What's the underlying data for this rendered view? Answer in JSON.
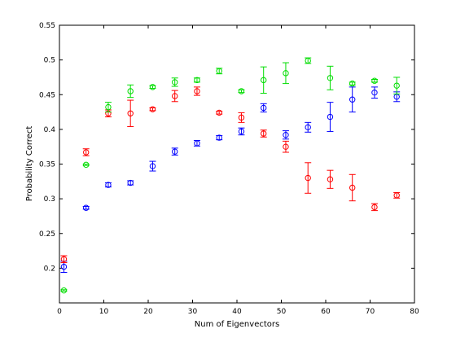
{
  "chart_data": {
    "type": "scatter",
    "xlabel": "Num of Eigenvectors",
    "ylabel": "Probability Correct",
    "xlim": [
      0,
      80
    ],
    "ylim": [
      0.15,
      0.55
    ],
    "xticks": [
      "0",
      "10",
      "20",
      "30",
      "40",
      "50",
      "60",
      "70",
      "80"
    ],
    "yticks": [
      "0.2",
      "0.25",
      "0.3",
      "0.35",
      "0.4",
      "0.45",
      "0.5",
      "0.55"
    ],
    "grid": false,
    "legend": "none",
    "series": [
      {
        "color": "#0000ff",
        "x": [
          1,
          6,
          11,
          16,
          21,
          26,
          31,
          36,
          41,
          46,
          51,
          56,
          61,
          66,
          71,
          76
        ],
        "y": [
          0.202,
          0.287,
          0.32,
          0.323,
          0.347,
          0.368,
          0.38,
          0.388,
          0.397,
          0.431,
          0.392,
          0.403,
          0.418,
          0.443,
          0.453,
          0.447
        ],
        "err": [
          0.008,
          0.002,
          0.003,
          0.003,
          0.007,
          0.005,
          0.004,
          0.003,
          0.005,
          0.006,
          0.006,
          0.007,
          0.021,
          0.018,
          0.008,
          0.007
        ]
      },
      {
        "color": "#ff0000",
        "x": [
          1,
          6,
          11,
          16,
          21,
          26,
          31,
          36,
          41,
          46,
          51,
          56,
          61,
          66,
          71,
          76
        ],
        "y": [
          0.213,
          0.367,
          0.423,
          0.423,
          0.429,
          0.448,
          0.455,
          0.424,
          0.417,
          0.394,
          0.375,
          0.33,
          0.328,
          0.316,
          0.288,
          0.305
        ],
        "err": [
          0.005,
          0.005,
          0.005,
          0.019,
          0.002,
          0.008,
          0.006,
          0.002,
          0.007,
          0.005,
          0.008,
          0.022,
          0.013,
          0.019,
          0.005,
          0.004
        ]
      },
      {
        "color": "#00dd00",
        "x": [
          1,
          6,
          11,
          16,
          21,
          26,
          31,
          36,
          41,
          46,
          51,
          56,
          61,
          66,
          71,
          76
        ],
        "y": [
          0.168,
          0.349,
          0.432,
          0.455,
          0.461,
          0.468,
          0.471,
          0.484,
          0.455,
          0.471,
          0.481,
          0.499,
          0.474,
          0.466,
          0.47,
          0.463
        ],
        "err": [
          0.001,
          0.001,
          0.007,
          0.009,
          0.002,
          0.006,
          0.003,
          0.004,
          0.002,
          0.019,
          0.015,
          0.004,
          0.017,
          0.002,
          0.002,
          0.012
        ]
      }
    ]
  }
}
